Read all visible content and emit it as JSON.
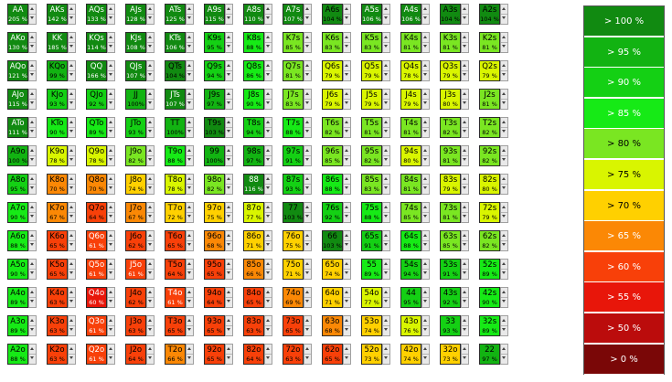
{
  "grid": {
    "rows": [
      [
        [
          "AA",
          "205 %"
        ],
        [
          "AKs",
          "142 %"
        ],
        [
          "AQs",
          "133 %"
        ],
        [
          "AJs",
          "128 %"
        ],
        [
          "ATs",
          "125 %"
        ],
        [
          "A9s",
          "115 %"
        ],
        [
          "A8s",
          "110 %"
        ],
        [
          "A7s",
          "107 %"
        ],
        [
          "A6s",
          "104 %"
        ],
        [
          "A5s",
          "106 %"
        ],
        [
          "A4s",
          "106 %"
        ],
        [
          "A3s",
          "104 %"
        ],
        [
          "A2s",
          "104 %"
        ]
      ],
      [
        [
          "AKo",
          "130 %"
        ],
        [
          "KK",
          "185 %"
        ],
        [
          "KQs",
          "114 %"
        ],
        [
          "KJs",
          "108 %"
        ],
        [
          "KTs",
          "106 %"
        ],
        [
          "K9s",
          "95 %"
        ],
        [
          "K8s",
          "88 %"
        ],
        [
          "K7s",
          "85 %"
        ],
        [
          "K6s",
          "83 %"
        ],
        [
          "K5s",
          "83 %"
        ],
        [
          "K4s",
          "81 %"
        ],
        [
          "K3s",
          "81 %"
        ],
        [
          "K2s",
          "81 %"
        ]
      ],
      [
        [
          "AQo",
          "121 %"
        ],
        [
          "KQo",
          "99 %"
        ],
        [
          "QQ",
          "166 %"
        ],
        [
          "QJs",
          "107 %"
        ],
        [
          "QTs",
          "104 %"
        ],
        [
          "Q9s",
          "94 %"
        ],
        [
          "Q8s",
          "86 %"
        ],
        [
          "Q7s",
          "81 %"
        ],
        [
          "Q6s",
          "79 %"
        ],
        [
          "Q5s",
          "79 %"
        ],
        [
          "Q4s",
          "78 %"
        ],
        [
          "Q3s",
          "79 %"
        ],
        [
          "Q2s",
          "79 %"
        ]
      ],
      [
        [
          "AJo",
          "115 %"
        ],
        [
          "KJo",
          "93 %"
        ],
        [
          "QJo",
          "92 %"
        ],
        [
          "JJ",
          "100%"
        ],
        [
          "JTs",
          "107 %"
        ],
        [
          "J9s",
          "97 %"
        ],
        [
          "J8s",
          "90 %"
        ],
        [
          "J7s",
          "83 %"
        ],
        [
          "J6s",
          "79 %"
        ],
        [
          "J5s",
          "79 %"
        ],
        [
          "J4s",
          "79 %"
        ],
        [
          "J3s",
          "80 %"
        ],
        [
          "J2s",
          "81 %"
        ]
      ],
      [
        [
          "ATo",
          "111 %"
        ],
        [
          "KTo",
          "90 %"
        ],
        [
          "QTo",
          "89 %"
        ],
        [
          "JTo",
          "93 %"
        ],
        [
          "TT",
          "100%"
        ],
        [
          "T9s",
          "103 %"
        ],
        [
          "T8s",
          "94 %"
        ],
        [
          "T7s",
          "88 %"
        ],
        [
          "T6s",
          "82 %"
        ],
        [
          "T5s",
          "81 %"
        ],
        [
          "T4s",
          "81 %"
        ],
        [
          "T3s",
          "82 %"
        ],
        [
          "T2s",
          "82 %"
        ]
      ],
      [
        [
          "A9o",
          "100 %"
        ],
        [
          "K9o",
          "78 %"
        ],
        [
          "Q9o",
          "78 %"
        ],
        [
          "J9o",
          "82 %"
        ],
        [
          "T9o",
          "88 %"
        ],
        [
          "99",
          "100%"
        ],
        [
          "98s",
          "97 %"
        ],
        [
          "97s",
          "91 %"
        ],
        [
          "96s",
          "85 %"
        ],
        [
          "95s",
          "82 %"
        ],
        [
          "94s",
          "80 %"
        ],
        [
          "93s",
          "81 %"
        ],
        [
          "92s",
          "82 %"
        ]
      ],
      [
        [
          "A8o",
          "95 %"
        ],
        [
          "K8o",
          "70 %"
        ],
        [
          "Q8o",
          "70 %"
        ],
        [
          "J8o",
          "74 %"
        ],
        [
          "T8o",
          "78 %"
        ],
        [
          "98o",
          "82 %"
        ],
        [
          "88",
          "116 %"
        ],
        [
          "87s",
          "93 %"
        ],
        [
          "86s",
          "88 %"
        ],
        [
          "85s",
          "83 %"
        ],
        [
          "84s",
          "81 %"
        ],
        [
          "83s",
          "79 %"
        ],
        [
          "82s",
          "80 %"
        ]
      ],
      [
        [
          "A7o",
          "90 %"
        ],
        [
          "K7o",
          "67 %"
        ],
        [
          "Q7o",
          "64 %"
        ],
        [
          "J7o",
          "67 %"
        ],
        [
          "T7o",
          "72 %"
        ],
        [
          "97o",
          "75 %"
        ],
        [
          "87o",
          "77 %"
        ],
        [
          "77",
          "103 %"
        ],
        [
          "76s",
          "92 %"
        ],
        [
          "75s",
          "88 %"
        ],
        [
          "74s",
          "85 %"
        ],
        [
          "73s",
          "81 %"
        ],
        [
          "72s",
          "79 %"
        ]
      ],
      [
        [
          "A6o",
          "88 %"
        ],
        [
          "K6o",
          "65 %"
        ],
        [
          "Q6o",
          "61 %"
        ],
        [
          "J6o",
          "62 %"
        ],
        [
          "T6o",
          "65 %"
        ],
        [
          "96o",
          "68 %"
        ],
        [
          "86o",
          "71 %"
        ],
        [
          "76o",
          "75 %"
        ],
        [
          "66",
          "103 %"
        ],
        [
          "65s",
          "91 %"
        ],
        [
          "64s",
          "88 %"
        ],
        [
          "63s",
          "85 %"
        ],
        [
          "62s",
          "82 %"
        ]
      ],
      [
        [
          "A5o",
          "90 %"
        ],
        [
          "K5o",
          "65 %"
        ],
        [
          "Q5o",
          "61 %"
        ],
        [
          "J5o",
          "61 %"
        ],
        [
          "T5o",
          "64 %"
        ],
        [
          "95o",
          "65 %"
        ],
        [
          "85o",
          "66 %"
        ],
        [
          "75o",
          "71 %"
        ],
        [
          "65o",
          "74 %"
        ],
        [
          "55",
          "89 %"
        ],
        [
          "54s",
          "94 %"
        ],
        [
          "53s",
          "91 %"
        ],
        [
          "52s",
          "89 %"
        ]
      ],
      [
        [
          "A4o",
          "89 %"
        ],
        [
          "K4o",
          "63 %"
        ],
        [
          "Q4o",
          "60 %"
        ],
        [
          "J4o",
          "62 %"
        ],
        [
          "T4o",
          "61 %"
        ],
        [
          "94o",
          "64 %"
        ],
        [
          "84o",
          "65 %"
        ],
        [
          "74o",
          "69 %"
        ],
        [
          "64o",
          "71 %"
        ],
        [
          "54o",
          "77 %"
        ],
        [
          "44",
          "95 %"
        ],
        [
          "43s",
          "92 %"
        ],
        [
          "42s",
          "90 %"
        ]
      ],
      [
        [
          "A3o",
          "89 %"
        ],
        [
          "K3o",
          "63 %"
        ],
        [
          "Q3o",
          "61 %"
        ],
        [
          "J3o",
          "63 %"
        ],
        [
          "T3o",
          "65 %"
        ],
        [
          "93o",
          "65 %"
        ],
        [
          "83o",
          "63 %"
        ],
        [
          "73o",
          "65 %"
        ],
        [
          "63o",
          "68 %"
        ],
        [
          "53o",
          "74 %"
        ],
        [
          "43o",
          "76 %"
        ],
        [
          "33",
          "93 %"
        ],
        [
          "32s",
          "89 %"
        ]
      ],
      [
        [
          "A2o",
          "88 %"
        ],
        [
          "K2o",
          "63 %"
        ],
        [
          "Q2o",
          "61 %"
        ],
        [
          "J2o",
          "64 %"
        ],
        [
          "T2o",
          "66 %"
        ],
        [
          "92o",
          "65 %"
        ],
        [
          "82o",
          "64 %"
        ],
        [
          "72o",
          "63 %"
        ],
        [
          "62o",
          "65 %"
        ],
        [
          "52o",
          "73 %"
        ],
        [
          "42o",
          "74 %"
        ],
        [
          "32o",
          "73 %"
        ],
        [
          "22",
          "97 %"
        ]
      ]
    ]
  },
  "legend": [
    {
      "label": "> 100 %",
      "color": "#118a11"
    },
    {
      "label": "> 95 %",
      "color": "#12b312"
    },
    {
      "label": "> 90 %",
      "color": "#14d014"
    },
    {
      "label": "> 85 %",
      "color": "#16ea16"
    },
    {
      "label": "> 80 %",
      "color": "#7ae622"
    },
    {
      "label": "> 75 %",
      "color": "#d9f500"
    },
    {
      "label": "> 70 %",
      "color": "#ffd000"
    },
    {
      "label": "> 65 %",
      "color": "#fb8805"
    },
    {
      "label": "> 60 %",
      "color": "#f84009"
    },
    {
      "label": "> 55 %",
      "color": "#e8160a"
    },
    {
      "label": "> 50 %",
      "color": "#bb0c0c"
    },
    {
      "label": "> 0 %",
      "color": "#7a0707"
    }
  ]
}
